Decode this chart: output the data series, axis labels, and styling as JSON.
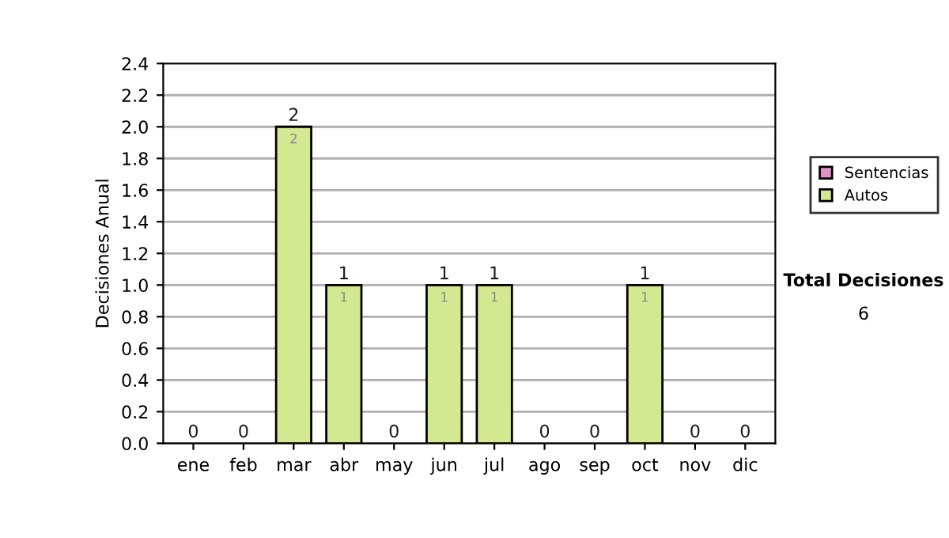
{
  "chart_data": {
    "type": "bar",
    "stacked": true,
    "ylabel": "Decisiones Anual",
    "categories": [
      "ene",
      "feb",
      "mar",
      "abr",
      "may",
      "jun",
      "jul",
      "ago",
      "sep",
      "oct",
      "nov",
      "dic"
    ],
    "series": [
      {
        "name": "Sentencias",
        "color": "#e38fc8",
        "values": [
          0,
          0,
          0,
          0,
          0,
          0,
          0,
          0,
          0,
          0,
          0,
          0
        ]
      },
      {
        "name": "Autos",
        "color": "#d4e892",
        "values": [
          0,
          0,
          2,
          1,
          0,
          1,
          1,
          0,
          0,
          1,
          0,
          0
        ],
        "value_labels": [
          null,
          null,
          "2",
          "1",
          null,
          "1",
          "1",
          null,
          null,
          "1",
          null,
          null
        ]
      }
    ],
    "totals": [
      "0",
      "0",
      "2",
      "1",
      "0",
      "1",
      "1",
      "0",
      "0",
      "1",
      "0",
      "0"
    ],
    "ylim": [
      0,
      2.4
    ],
    "yticks": [
      {
        "value": 0,
        "label": "0.0"
      },
      {
        "value": 0.2,
        "label": "0.2"
      },
      {
        "value": 0.4,
        "label": "0.4"
      },
      {
        "value": 0.6,
        "label": "0.6"
      },
      {
        "value": 0.8,
        "label": "0.8"
      },
      {
        "value": 1,
        "label": "1.0"
      },
      {
        "value": 1.2,
        "label": "1.2"
      },
      {
        "value": 1.4,
        "label": "1.4"
      },
      {
        "value": 1.6,
        "label": "1.6"
      },
      {
        "value": 1.8,
        "label": "1.8"
      },
      {
        "value": 2,
        "label": "2.0"
      },
      {
        "value": 2.2,
        "label": "2.2"
      },
      {
        "value": 2.4,
        "label": "2.4"
      }
    ],
    "grid": "y",
    "legend": "right",
    "annotations": [
      "Total Decisiones",
      "6"
    ]
  }
}
